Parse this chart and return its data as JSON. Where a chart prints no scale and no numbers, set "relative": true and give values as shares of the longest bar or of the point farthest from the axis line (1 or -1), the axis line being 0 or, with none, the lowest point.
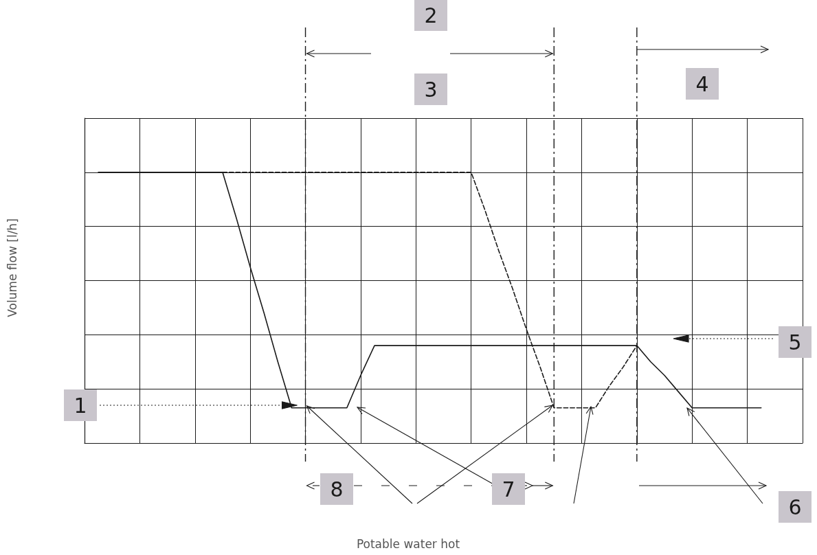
{
  "chart_data": {
    "type": "line",
    "relative": true,
    "categories": [
      null,
      null,
      null,
      null,
      null,
      null,
      null,
      null,
      null,
      null,
      null,
      null,
      null,
      null,
      null,
      null,
      null,
      null,
      null,
      null,
      null,
      null,
      null,
      null,
      null,
      null,
      null,
      null,
      null,
      null,
      null,
      null,
      null,
      null,
      null,
      null,
      null,
      null,
      null,
      null,
      null,
      null,
      null,
      null,
      null,
      null,
      null,
      null,
      null,
      null,
      null,
      null,
      null
    ],
    "series": [
      {
        "color": "#1a1a1a",
        "line_style": "solid",
        "values": [
          null,
          1,
          1,
          1,
          1,
          1,
          1,
          1,
          1,
          1,
          1,
          0.83,
          0.65,
          0.48,
          0.3,
          0.13,
          0.13,
          0.13,
          0.13,
          0.13,
          0.25,
          0.36,
          0.36,
          0.36,
          0.36,
          0.36,
          0.36,
          0.36,
          0.36,
          0.36,
          0.36,
          0.36,
          0.36,
          0.36,
          0.36,
          0.36,
          0.36,
          0.36,
          0.36,
          0.36,
          0.36,
          0.3,
          0.25,
          0.19,
          0.13,
          0.13,
          0.13,
          0.13,
          0.13,
          0.13,
          null,
          null,
          null
        ]
      },
      {
        "color": "#1a1a1a",
        "line_style": "dashed",
        "values": [
          null,
          null,
          null,
          null,
          null,
          null,
          null,
          null,
          null,
          null,
          1,
          1,
          1,
          1,
          1,
          1,
          1,
          1,
          1,
          1,
          1,
          1,
          1,
          1,
          1,
          1,
          1,
          1,
          1,
          0.86,
          0.71,
          0.57,
          0.42,
          0.28,
          0.13,
          0.13,
          0.13,
          0.13,
          0.21,
          0.28,
          0.36,
          null,
          null,
          null,
          null,
          null,
          null,
          null,
          null,
          null,
          null,
          null,
          null
        ]
      }
    ],
    "annotations": [
      "1",
      "2",
      "3",
      "4",
      "5",
      "6",
      "7",
      "8",
      "Potable water hot",
      "Volume flow [l/h]"
    ],
    "grid": true,
    "marker": "none"
  }
}
